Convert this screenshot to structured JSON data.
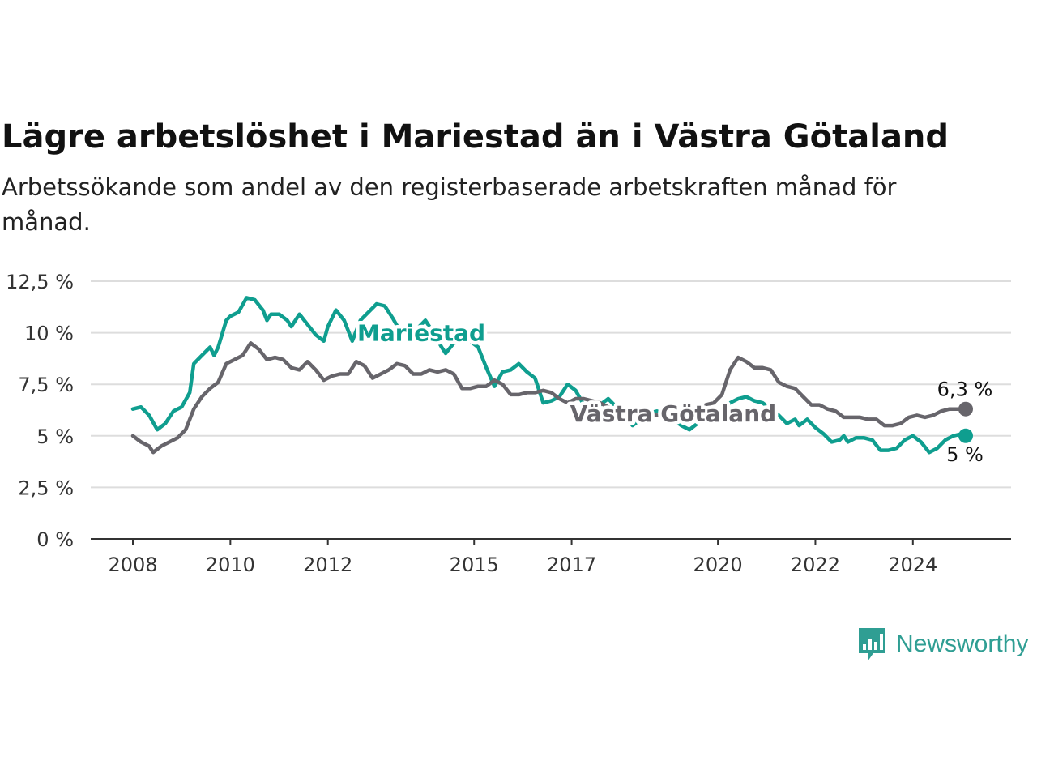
{
  "title": "Lägre arbetslöshet i Mariestad än i Västra Götaland",
  "subtitle": "Arbetssökande som andel av den registerbaserade arbetskraften månad för månad.",
  "brand": {
    "name": "Newsworthy",
    "icon": "newsworthy-logo-icon"
  },
  "colors": {
    "mariestad": "#0f9e8f",
    "vastra_gotaland": "#67656b",
    "grid": "#dddddd",
    "axis": "#333333"
  },
  "chart_data": {
    "type": "line",
    "ylim": [
      0,
      12.5
    ],
    "xlim": [
      "2008-01",
      "2025-03"
    ],
    "y_ticks": [
      {
        "value": 0,
        "label": "0 %"
      },
      {
        "value": 2.5,
        "label": "2,5 %"
      },
      {
        "value": 5,
        "label": "5 %"
      },
      {
        "value": 7.5,
        "label": "7,5 %"
      },
      {
        "value": 10,
        "label": "10 %"
      },
      {
        "value": 12.5,
        "label": "12,5 %"
      }
    ],
    "x_ticks": [
      {
        "value": "2008-01",
        "label": "2008"
      },
      {
        "value": "2010-01",
        "label": "2010"
      },
      {
        "value": "2012-01",
        "label": "2012"
      },
      {
        "value": "2015-01",
        "label": "2015"
      },
      {
        "value": "2017-01",
        "label": "2017"
      },
      {
        "value": "2020-01",
        "label": "2020"
      },
      {
        "value": "2022-01",
        "label": "2022"
      },
      {
        "value": "2024-01",
        "label": "2024"
      }
    ],
    "grid": true,
    "series": [
      {
        "name": "Mariestad",
        "color": "#0f9e8f",
        "end_label": "5 %",
        "points": [
          [
            "2008-01",
            6.3
          ],
          [
            "2008-03",
            6.4
          ],
          [
            "2008-05",
            6.0
          ],
          [
            "2008-07",
            5.3
          ],
          [
            "2008-09",
            5.6
          ],
          [
            "2008-11",
            6.2
          ],
          [
            "2009-01",
            6.4
          ],
          [
            "2009-03",
            7.1
          ],
          [
            "2009-04",
            8.5
          ],
          [
            "2009-06",
            8.9
          ],
          [
            "2009-08",
            9.3
          ],
          [
            "2009-09",
            8.9
          ],
          [
            "2009-10",
            9.3
          ],
          [
            "2009-12",
            10.6
          ],
          [
            "2010-01",
            10.8
          ],
          [
            "2010-03",
            11.0
          ],
          [
            "2010-05",
            11.7
          ],
          [
            "2010-07",
            11.6
          ],
          [
            "2010-09",
            11.1
          ],
          [
            "2010-10",
            10.6
          ],
          [
            "2010-11",
            10.9
          ],
          [
            "2011-01",
            10.9
          ],
          [
            "2011-03",
            10.6
          ],
          [
            "2011-04",
            10.3
          ],
          [
            "2011-06",
            10.9
          ],
          [
            "2011-08",
            10.4
          ],
          [
            "2011-10",
            9.9
          ],
          [
            "2011-12",
            9.6
          ],
          [
            "2012-01",
            10.3
          ],
          [
            "2012-03",
            11.1
          ],
          [
            "2012-05",
            10.6
          ],
          [
            "2012-07",
            9.6
          ],
          [
            "2012-09",
            10.6
          ],
          [
            "2012-11",
            11.0
          ],
          [
            "2013-01",
            11.4
          ],
          [
            "2013-03",
            11.3
          ],
          [
            "2013-05",
            10.7
          ],
          [
            "2013-07",
            10.0
          ],
          [
            "2013-09",
            9.6
          ],
          [
            "2013-11",
            10.2
          ],
          [
            "2014-01",
            10.6
          ],
          [
            "2014-03",
            10.0
          ],
          [
            "2014-05",
            9.3
          ],
          [
            "2014-06",
            9.0
          ],
          [
            "2014-08",
            9.5
          ],
          [
            "2014-10",
            9.6
          ],
          [
            "2014-12",
            9.6
          ],
          [
            "2015-02",
            9.3
          ],
          [
            "2015-04",
            8.3
          ],
          [
            "2015-06",
            7.4
          ],
          [
            "2015-08",
            8.1
          ],
          [
            "2015-10",
            8.2
          ],
          [
            "2015-12",
            8.5
          ],
          [
            "2016-02",
            8.1
          ],
          [
            "2016-04",
            7.8
          ],
          [
            "2016-06",
            6.6
          ],
          [
            "2016-08",
            6.7
          ],
          [
            "2016-10",
            6.9
          ],
          [
            "2016-12",
            7.5
          ],
          [
            "2017-02",
            7.2
          ],
          [
            "2017-04",
            6.5
          ],
          [
            "2017-06",
            6.2
          ],
          [
            "2017-08",
            6.5
          ],
          [
            "2017-10",
            6.8
          ],
          [
            "2017-12",
            6.4
          ],
          [
            "2018-02",
            6.1
          ],
          [
            "2018-04",
            5.5
          ],
          [
            "2018-06",
            5.8
          ],
          [
            "2018-08",
            6.1
          ],
          [
            "2018-10",
            6.2
          ],
          [
            "2018-12",
            6.0
          ],
          [
            "2019-02",
            5.8
          ],
          [
            "2019-04",
            5.5
          ],
          [
            "2019-06",
            5.3
          ],
          [
            "2019-08",
            5.6
          ],
          [
            "2019-10",
            5.9
          ],
          [
            "2019-12",
            6.2
          ],
          [
            "2020-02",
            6.2
          ],
          [
            "2020-04",
            6.6
          ],
          [
            "2020-06",
            6.8
          ],
          [
            "2020-08",
            6.9
          ],
          [
            "2020-10",
            6.7
          ],
          [
            "2020-12",
            6.6
          ],
          [
            "2021-02",
            6.3
          ],
          [
            "2021-04",
            6.0
          ],
          [
            "2021-06",
            5.6
          ],
          [
            "2021-08",
            5.8
          ],
          [
            "2021-09",
            5.5
          ],
          [
            "2021-11",
            5.8
          ],
          [
            "2022-01",
            5.4
          ],
          [
            "2022-03",
            5.1
          ],
          [
            "2022-05",
            4.7
          ],
          [
            "2022-07",
            4.8
          ],
          [
            "2022-08",
            5.0
          ],
          [
            "2022-09",
            4.7
          ],
          [
            "2022-11",
            4.9
          ],
          [
            "2023-01",
            4.9
          ],
          [
            "2023-03",
            4.8
          ],
          [
            "2023-05",
            4.3
          ],
          [
            "2023-07",
            4.3
          ],
          [
            "2023-09",
            4.4
          ],
          [
            "2023-11",
            4.8
          ],
          [
            "2024-01",
            5.0
          ],
          [
            "2024-03",
            4.7
          ],
          [
            "2024-05",
            4.2
          ],
          [
            "2024-07",
            4.4
          ],
          [
            "2024-09",
            4.8
          ],
          [
            "2024-11",
            5.0
          ],
          [
            "2025-01",
            5.1
          ],
          [
            "2025-02",
            5.0
          ]
        ]
      },
      {
        "name": "Västra Götaland",
        "color": "#67656b",
        "end_label": "6,3 %",
        "points": [
          [
            "2008-01",
            5.0
          ],
          [
            "2008-03",
            4.7
          ],
          [
            "2008-05",
            4.5
          ],
          [
            "2008-06",
            4.2
          ],
          [
            "2008-08",
            4.5
          ],
          [
            "2008-10",
            4.7
          ],
          [
            "2008-12",
            4.9
          ],
          [
            "2009-02",
            5.3
          ],
          [
            "2009-04",
            6.3
          ],
          [
            "2009-06",
            6.9
          ],
          [
            "2009-08",
            7.3
          ],
          [
            "2009-10",
            7.6
          ],
          [
            "2009-12",
            8.5
          ],
          [
            "2010-02",
            8.7
          ],
          [
            "2010-04",
            8.9
          ],
          [
            "2010-06",
            9.5
          ],
          [
            "2010-08",
            9.2
          ],
          [
            "2010-10",
            8.7
          ],
          [
            "2010-12",
            8.8
          ],
          [
            "2011-02",
            8.7
          ],
          [
            "2011-04",
            8.3
          ],
          [
            "2011-06",
            8.2
          ],
          [
            "2011-08",
            8.6
          ],
          [
            "2011-10",
            8.2
          ],
          [
            "2011-12",
            7.7
          ],
          [
            "2012-02",
            7.9
          ],
          [
            "2012-04",
            8.0
          ],
          [
            "2012-06",
            8.0
          ],
          [
            "2012-08",
            8.6
          ],
          [
            "2012-10",
            8.4
          ],
          [
            "2012-12",
            7.8
          ],
          [
            "2013-02",
            8.0
          ],
          [
            "2013-04",
            8.2
          ],
          [
            "2013-06",
            8.5
          ],
          [
            "2013-08",
            8.4
          ],
          [
            "2013-10",
            8.0
          ],
          [
            "2013-12",
            8.0
          ],
          [
            "2014-02",
            8.2
          ],
          [
            "2014-04",
            8.1
          ],
          [
            "2014-06",
            8.2
          ],
          [
            "2014-08",
            8.0
          ],
          [
            "2014-10",
            7.3
          ],
          [
            "2014-12",
            7.3
          ],
          [
            "2015-02",
            7.4
          ],
          [
            "2015-04",
            7.4
          ],
          [
            "2015-06",
            7.7
          ],
          [
            "2015-08",
            7.5
          ],
          [
            "2015-10",
            7.0
          ],
          [
            "2015-12",
            7.0
          ],
          [
            "2016-02",
            7.1
          ],
          [
            "2016-04",
            7.1
          ],
          [
            "2016-06",
            7.2
          ],
          [
            "2016-08",
            7.1
          ],
          [
            "2016-10",
            6.8
          ],
          [
            "2016-12",
            6.6
          ],
          [
            "2017-02",
            6.8
          ],
          [
            "2017-04",
            6.8
          ],
          [
            "2017-06",
            6.7
          ],
          [
            "2017-08",
            6.6
          ],
          [
            "2017-10",
            6.4
          ],
          [
            "2017-12",
            6.3
          ],
          [
            "2018-02",
            6.2
          ],
          [
            "2018-04",
            6.1
          ],
          [
            "2018-06",
            6.1
          ],
          [
            "2018-08",
            6.1
          ],
          [
            "2018-10",
            6.0
          ],
          [
            "2018-12",
            6.0
          ],
          [
            "2019-02",
            6.0
          ],
          [
            "2019-04",
            6.1
          ],
          [
            "2019-06",
            6.2
          ],
          [
            "2019-08",
            6.3
          ],
          [
            "2019-10",
            6.5
          ],
          [
            "2019-12",
            6.6
          ],
          [
            "2020-02",
            7.0
          ],
          [
            "2020-04",
            8.2
          ],
          [
            "2020-06",
            8.8
          ],
          [
            "2020-08",
            8.6
          ],
          [
            "2020-10",
            8.3
          ],
          [
            "2020-12",
            8.3
          ],
          [
            "2021-02",
            8.2
          ],
          [
            "2021-04",
            7.6
          ],
          [
            "2021-06",
            7.4
          ],
          [
            "2021-08",
            7.3
          ],
          [
            "2021-10",
            6.9
          ],
          [
            "2021-12",
            6.5
          ],
          [
            "2022-02",
            6.5
          ],
          [
            "2022-04",
            6.3
          ],
          [
            "2022-06",
            6.2
          ],
          [
            "2022-08",
            5.9
          ],
          [
            "2022-10",
            5.9
          ],
          [
            "2022-12",
            5.9
          ],
          [
            "2023-02",
            5.8
          ],
          [
            "2023-04",
            5.8
          ],
          [
            "2023-06",
            5.5
          ],
          [
            "2023-08",
            5.5
          ],
          [
            "2023-10",
            5.6
          ],
          [
            "2023-12",
            5.9
          ],
          [
            "2024-02",
            6.0
          ],
          [
            "2024-04",
            5.9
          ],
          [
            "2024-06",
            6.0
          ],
          [
            "2024-08",
            6.2
          ],
          [
            "2024-10",
            6.3
          ],
          [
            "2025-02",
            6.3
          ]
        ]
      }
    ],
    "inline_labels": [
      {
        "text": "Mariestad",
        "series": 0,
        "at": [
          "2013-12",
          10.0
        ]
      },
      {
        "text": "Västra Götaland",
        "series": 1,
        "at": [
          "2019-02",
          6.1
        ]
      }
    ]
  }
}
